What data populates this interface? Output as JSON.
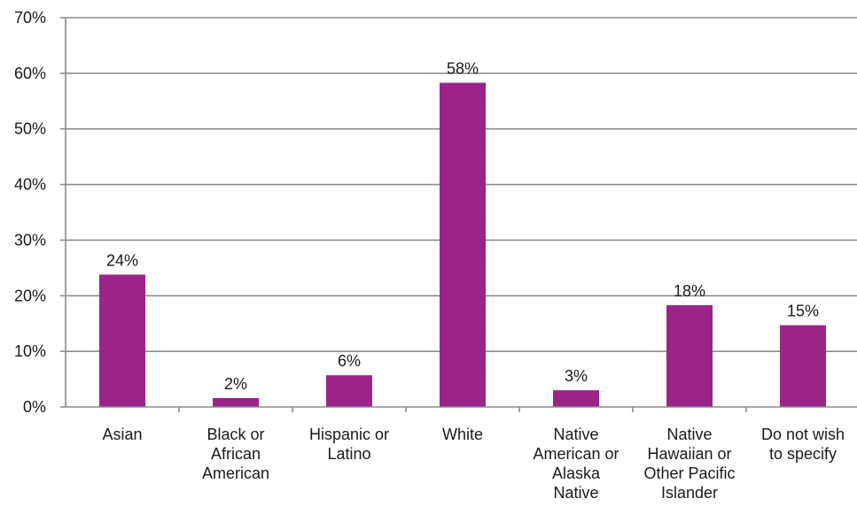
{
  "chart_data": {
    "type": "bar",
    "categories": [
      [
        "Asian"
      ],
      [
        "Black or",
        "African",
        "American"
      ],
      [
        "Hispanic or",
        "Latino"
      ],
      [
        "White"
      ],
      [
        "Native",
        "American or",
        "Alaska",
        "Native"
      ],
      [
        "Native",
        "Hawaiian or",
        "Other Pacific",
        "Islander"
      ],
      [
        "Do not wish",
        "to specify"
      ]
    ],
    "values": [
      24,
      2,
      6,
      58,
      3,
      18,
      15
    ],
    "plotted_values": [
      23.8,
      1.6,
      5.7,
      58.3,
      3.0,
      18.3,
      14.7
    ],
    "data_labels": [
      "24%",
      "2%",
      "6%",
      "58%",
      "3%",
      "18%",
      "15%"
    ],
    "y_ticks": [
      "0%",
      "10%",
      "20%",
      "30%",
      "40%",
      "50%",
      "60%",
      "70%"
    ],
    "ylim": [
      0,
      70
    ],
    "grid": true,
    "bar_color": "#9b2489",
    "gridline_color": "#8c8c8c",
    "title": "",
    "xlabel": "",
    "ylabel": ""
  }
}
